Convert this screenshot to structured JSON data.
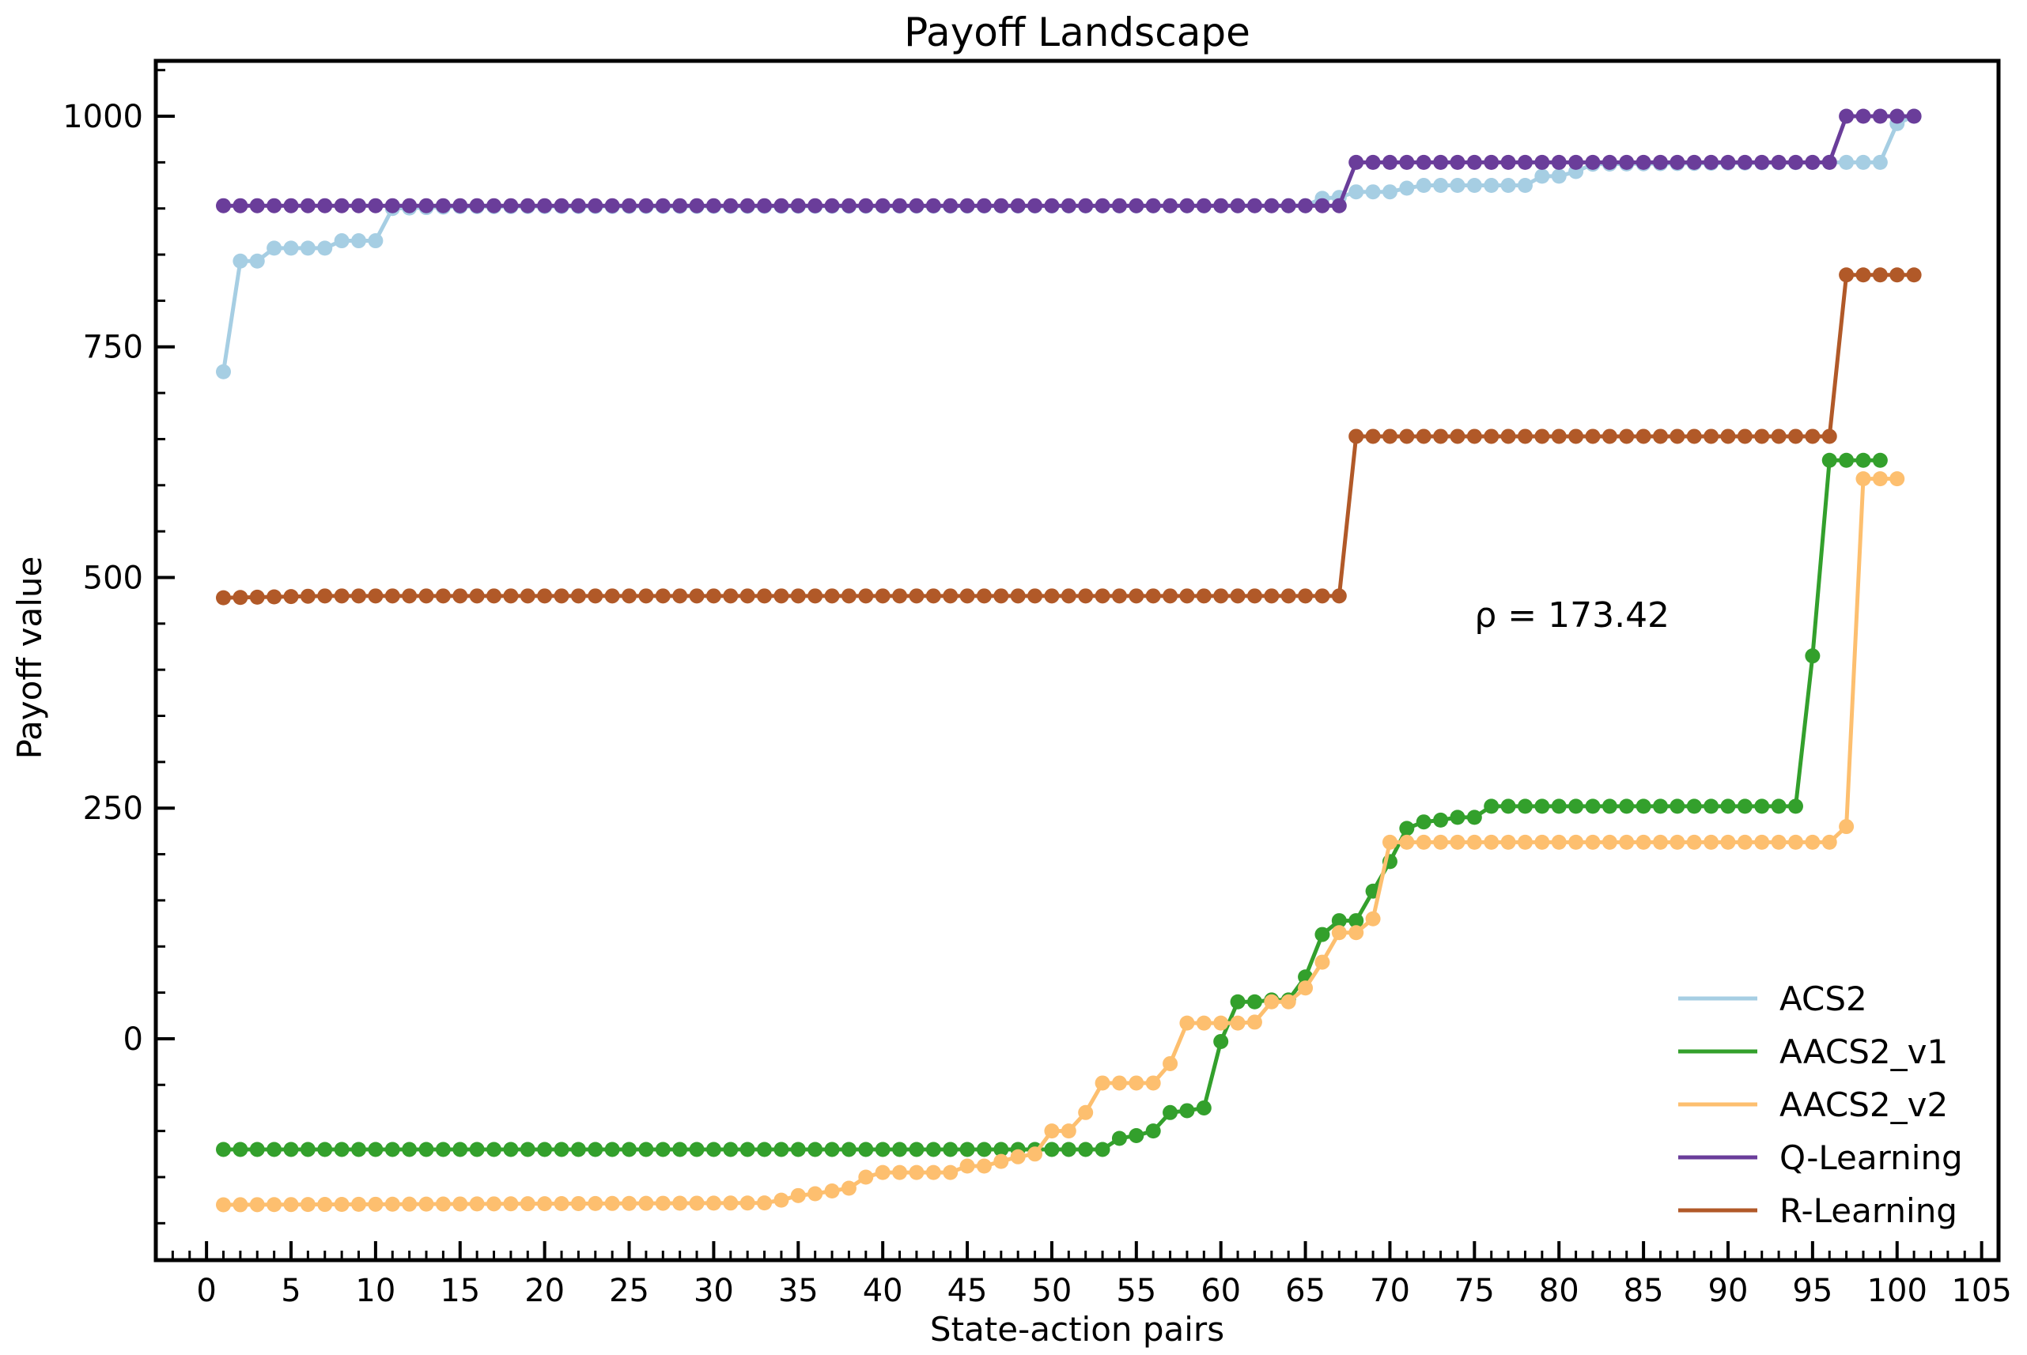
{
  "chart_data": {
    "type": "line",
    "title": "Payoff Landscape",
    "xlabel": "State-action pairs",
    "ylabel": "Payoff value",
    "xlim": [
      -3,
      106
    ],
    "ylim": [
      -240,
      1060
    ],
    "xticks": [
      0,
      5,
      10,
      15,
      20,
      25,
      30,
      35,
      40,
      45,
      50,
      55,
      60,
      65,
      70,
      75,
      80,
      85,
      90,
      95,
      100,
      105
    ],
    "yticks": [
      0,
      250,
      500,
      750,
      1000
    ],
    "ytick_labels": [
      "0",
      "250",
      "500",
      "750",
      "1000"
    ],
    "grid": false,
    "legend_position": "bottom-right",
    "annotation": {
      "text": "ρ = 173.42",
      "x": 75,
      "y": 460,
      "color": "#b15928"
    },
    "series": [
      {
        "name": "ACS2",
        "color": "#a6cee3",
        "segments": [
          [
            1,
            723
          ],
          [
            2,
            843
          ],
          [
            3,
            843
          ],
          [
            4,
            857
          ],
          [
            5,
            857
          ],
          [
            6,
            857
          ],
          [
            7,
            857
          ],
          [
            8,
            865
          ],
          [
            9,
            865
          ],
          [
            10,
            865
          ],
          [
            11,
            900
          ],
          [
            15,
            902
          ],
          [
            65,
            903
          ],
          [
            66,
            911
          ],
          [
            67,
            912
          ],
          [
            68,
            918
          ],
          [
            69,
            918
          ],
          [
            70,
            918
          ],
          [
            71,
            922
          ],
          [
            72,
            925
          ],
          [
            73,
            925
          ],
          [
            74,
            925
          ],
          [
            75,
            925
          ],
          [
            76,
            925
          ],
          [
            77,
            925
          ],
          [
            78,
            925
          ],
          [
            79,
            935
          ],
          [
            80,
            935
          ],
          [
            81,
            940
          ],
          [
            82,
            948
          ],
          [
            96,
            950
          ],
          [
            97,
            950
          ],
          [
            98,
            950
          ],
          [
            99,
            950
          ],
          [
            100,
            992
          ],
          [
            101,
            1000
          ]
        ]
      },
      {
        "name": "AACS2_v1",
        "color": "#33a02c",
        "segments": [
          [
            1,
            -120
          ],
          [
            48,
            -120
          ],
          [
            52,
            -120
          ],
          [
            53,
            -120
          ],
          [
            54,
            -108
          ],
          [
            55,
            -105
          ],
          [
            56,
            -100
          ],
          [
            57,
            -80
          ],
          [
            58,
            -78
          ],
          [
            59,
            -75
          ],
          [
            60,
            -3
          ],
          [
            61,
            40
          ],
          [
            62,
            40
          ],
          [
            63,
            42
          ],
          [
            64,
            42
          ],
          [
            65,
            67
          ],
          [
            66,
            113
          ],
          [
            67,
            128
          ],
          [
            68,
            128
          ],
          [
            69,
            160
          ],
          [
            70,
            192
          ],
          [
            71,
            228
          ],
          [
            72,
            235
          ],
          [
            73,
            237
          ],
          [
            74,
            240
          ],
          [
            75,
            240
          ],
          [
            76,
            252
          ],
          [
            94,
            252
          ],
          [
            95,
            415
          ],
          [
            96,
            627
          ],
          [
            99,
            627
          ]
        ]
      },
      {
        "name": "AACS2_v2",
        "color": "#fdbf6f",
        "segments": [
          [
            1,
            -180
          ],
          [
            33,
            -178
          ],
          [
            34,
            -175
          ],
          [
            35,
            -170
          ],
          [
            36,
            -168
          ],
          [
            37,
            -165
          ],
          [
            38,
            -162
          ],
          [
            39,
            -150
          ],
          [
            40,
            -145
          ],
          [
            44,
            -145
          ],
          [
            45,
            -138
          ],
          [
            46,
            -138
          ],
          [
            47,
            -133
          ],
          [
            48,
            -128
          ],
          [
            49,
            -125
          ],
          [
            50,
            -100
          ],
          [
            51,
            -100
          ],
          [
            52,
            -80
          ],
          [
            53,
            -48
          ],
          [
            56,
            -48
          ],
          [
            57,
            -27
          ],
          [
            58,
            17
          ],
          [
            61,
            17
          ],
          [
            62,
            18
          ],
          [
            63,
            40
          ],
          [
            64,
            40
          ],
          [
            65,
            55
          ],
          [
            66,
            83
          ],
          [
            67,
            115
          ],
          [
            68,
            115
          ],
          [
            69,
            130
          ],
          [
            70,
            213
          ],
          [
            96,
            213
          ],
          [
            97,
            230
          ],
          [
            98,
            607
          ],
          [
            100,
            607
          ]
        ]
      },
      {
        "name": "Q-Learning",
        "color": "#6a3d9a",
        "segments": [
          [
            1,
            903
          ],
          [
            67,
            903
          ],
          [
            68,
            950
          ],
          [
            96,
            950
          ],
          [
            97,
            1000
          ],
          [
            101,
            1000
          ]
        ]
      },
      {
        "name": "R-Learning",
        "color": "#b15928",
        "segments": [
          [
            1,
            478
          ],
          [
            7,
            480
          ],
          [
            67,
            480
          ],
          [
            68,
            653
          ],
          [
            96,
            653
          ],
          [
            97,
            828
          ],
          [
            101,
            828
          ]
        ]
      }
    ]
  }
}
